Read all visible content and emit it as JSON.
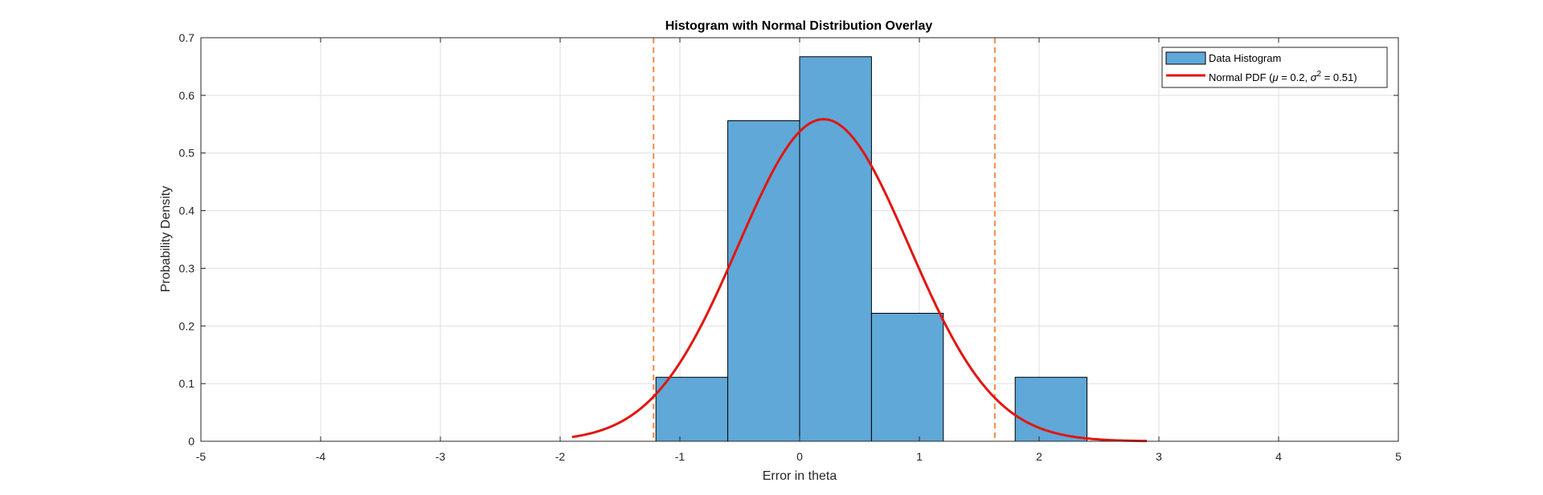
{
  "chart_data": {
    "type": "bar",
    "title": "Histogram with Normal Distribution Overlay",
    "xlabel": "Error in theta",
    "ylabel": "Probability Density",
    "xlim": [
      -5,
      5
    ],
    "ylim": [
      0,
      0.7
    ],
    "xticks": [
      "-5",
      "-4",
      "-3",
      "-2",
      "-1",
      "0",
      "1",
      "2",
      "3",
      "4",
      "5"
    ],
    "yticks": [
      "0",
      "0.1",
      "0.2",
      "0.3",
      "0.4",
      "0.5",
      "0.6",
      "0.7"
    ],
    "grid": true,
    "legend_position": "top-right",
    "histogram": {
      "name": "Data Histogram",
      "color": "#5fa8d8",
      "bin_edges": [
        -1.2,
        -0.6,
        0.0,
        0.6,
        1.2,
        1.8,
        2.4
      ],
      "values": [
        0.111,
        0.556,
        0.667,
        0.222,
        0.0,
        0.111
      ]
    },
    "normal_pdf": {
      "name": "Normal PDF (μ = 0.2, σ² = 0.51)",
      "name_prefix": "Normal PDF (",
      "mu_symbol": "μ",
      "mu_text": " = 0.2, ",
      "sigma_symbol": "σ",
      "sigma_sup": "2",
      "sigma_text": " = 0.51)",
      "mu": 0.2,
      "variance": 0.51,
      "x_range": [
        -1.9,
        2.9
      ],
      "color": "#e3150f"
    },
    "reference_lines": {
      "x": [
        -1.22,
        1.63
      ],
      "color": "#f58a4d",
      "style": "dashed"
    }
  }
}
